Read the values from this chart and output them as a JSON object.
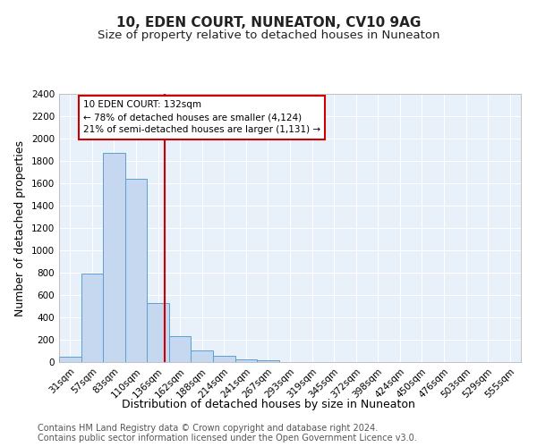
{
  "title": "10, EDEN COURT, NUNEATON, CV10 9AG",
  "subtitle": "Size of property relative to detached houses in Nuneaton",
  "xlabel": "Distribution of detached houses by size in Nuneaton",
  "ylabel": "Number of detached properties",
  "footer_line1": "Contains HM Land Registry data © Crown copyright and database right 2024.",
  "footer_line2": "Contains public sector information licensed under the Open Government Licence v3.0.",
  "bar_labels": [
    "31sqm",
    "57sqm",
    "83sqm",
    "110sqm",
    "136sqm",
    "162sqm",
    "188sqm",
    "214sqm",
    "241sqm",
    "267sqm",
    "293sqm",
    "319sqm",
    "345sqm",
    "372sqm",
    "398sqm",
    "424sqm",
    "450sqm",
    "476sqm",
    "503sqm",
    "529sqm",
    "555sqm"
  ],
  "bar_values": [
    50,
    795,
    1870,
    1640,
    530,
    235,
    105,
    53,
    27,
    20,
    0,
    0,
    0,
    0,
    0,
    0,
    0,
    0,
    0,
    0,
    0
  ],
  "bar_color": "#c5d8f0",
  "bar_edge_color": "#5a9fd4",
  "ylim": [
    0,
    2400
  ],
  "yticks": [
    0,
    200,
    400,
    600,
    800,
    1000,
    1200,
    1400,
    1600,
    1800,
    2000,
    2200,
    2400
  ],
  "vline_pos": 4.3,
  "vline_color": "#cc0000",
  "annotation_text": "10 EDEN COURT: 132sqm\n← 78% of detached houses are smaller (4,124)\n21% of semi-detached houses are larger (1,131) →",
  "bg_color": "#e8f0fa",
  "grid_color": "#ffffff",
  "title_fontsize": 11,
  "subtitle_fontsize": 9.5,
  "axis_label_fontsize": 9,
  "tick_fontsize": 7.5,
  "footer_fontsize": 7
}
